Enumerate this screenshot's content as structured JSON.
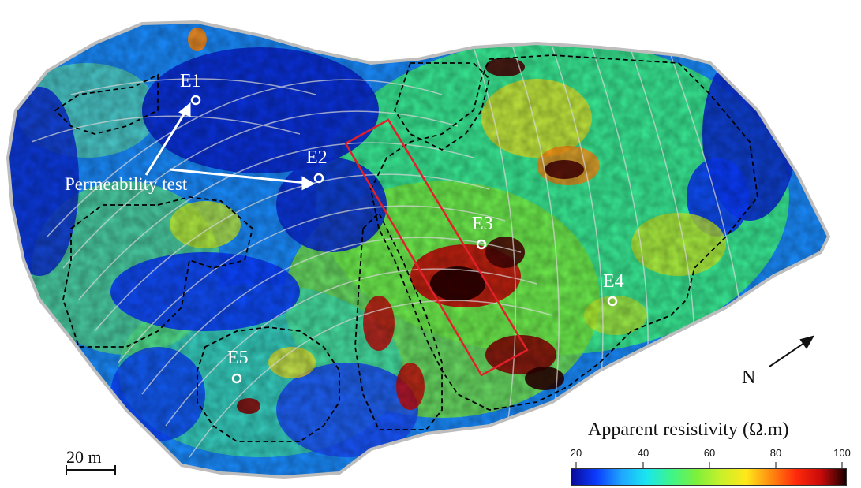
{
  "map": {
    "wells": [
      {
        "id": "E1",
        "label": "E1"
      },
      {
        "id": "E2",
        "label": "E2"
      },
      {
        "id": "E3",
        "label": "E3"
      },
      {
        "id": "E4",
        "label": "E4"
      },
      {
        "id": "E5",
        "label": "E5"
      }
    ],
    "annotation": "Permeability test",
    "north_label": "N",
    "scale_bar_label": "20 m"
  },
  "legend": {
    "title": "Apparent resistivity  (Ω.m)",
    "ticks": [
      "20",
      "40",
      "60",
      "80",
      "100"
    ],
    "range": [
      20,
      100
    ],
    "colors": [
      "#0a0a9a",
      "#0a3cff",
      "#1fa6ff",
      "#19e6f0",
      "#3df58a",
      "#7df03c",
      "#c8f02a",
      "#ffe81a",
      "#ff8a10",
      "#ff2a0a",
      "#c80a0a",
      "#1a0000"
    ]
  },
  "colors": {
    "outline_boundary": "#c8c8c8",
    "zone_dashes": "#000000",
    "survey_rectangle": "#e0202a",
    "labels_on_map": "#ffffff"
  }
}
